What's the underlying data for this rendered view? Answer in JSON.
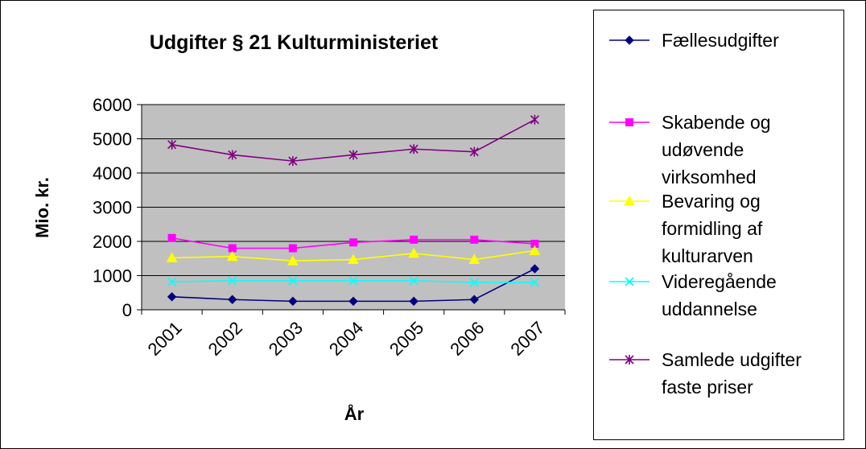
{
  "chart_data": {
    "type": "line",
    "title": "Udgifter § 21 Kulturministeriet",
    "x_label": "År",
    "y_label": "Mio. kr.",
    "categories": [
      "2001",
      "2002",
      "2003",
      "2004",
      "2005",
      "2006",
      "2007"
    ],
    "series": [
      {
        "name": "Fællesudgifter",
        "color": "#000080",
        "marker": "diamond",
        "values": [
          380,
          300,
          250,
          250,
          250,
          300,
          1200
        ]
      },
      {
        "name": "Skabende og udøvende virksomhed",
        "color": "#ff00ff",
        "marker": "square",
        "values": [
          2100,
          1800,
          1800,
          1970,
          2050,
          2050,
          1930
        ]
      },
      {
        "name": "Bevaring og formidling af kulturarven",
        "color": "#ffff00",
        "marker": "triangle",
        "values": [
          1520,
          1560,
          1430,
          1470,
          1650,
          1470,
          1730
        ]
      },
      {
        "name": "Videregående uddannelse",
        "color": "#00ffff",
        "marker": "x",
        "values": [
          820,
          850,
          850,
          850,
          850,
          800,
          800
        ]
      },
      {
        "name": "Samlede udgifter faste priser",
        "color": "#800080",
        "marker": "star",
        "values": [
          4830,
          4530,
          4350,
          4530,
          4700,
          4620,
          5560
        ]
      }
    ],
    "ylim": [
      0,
      6000
    ],
    "yticks": [
      0,
      1000,
      2000,
      3000,
      4000,
      5000,
      6000
    ],
    "grid": true,
    "legend": "right"
  }
}
